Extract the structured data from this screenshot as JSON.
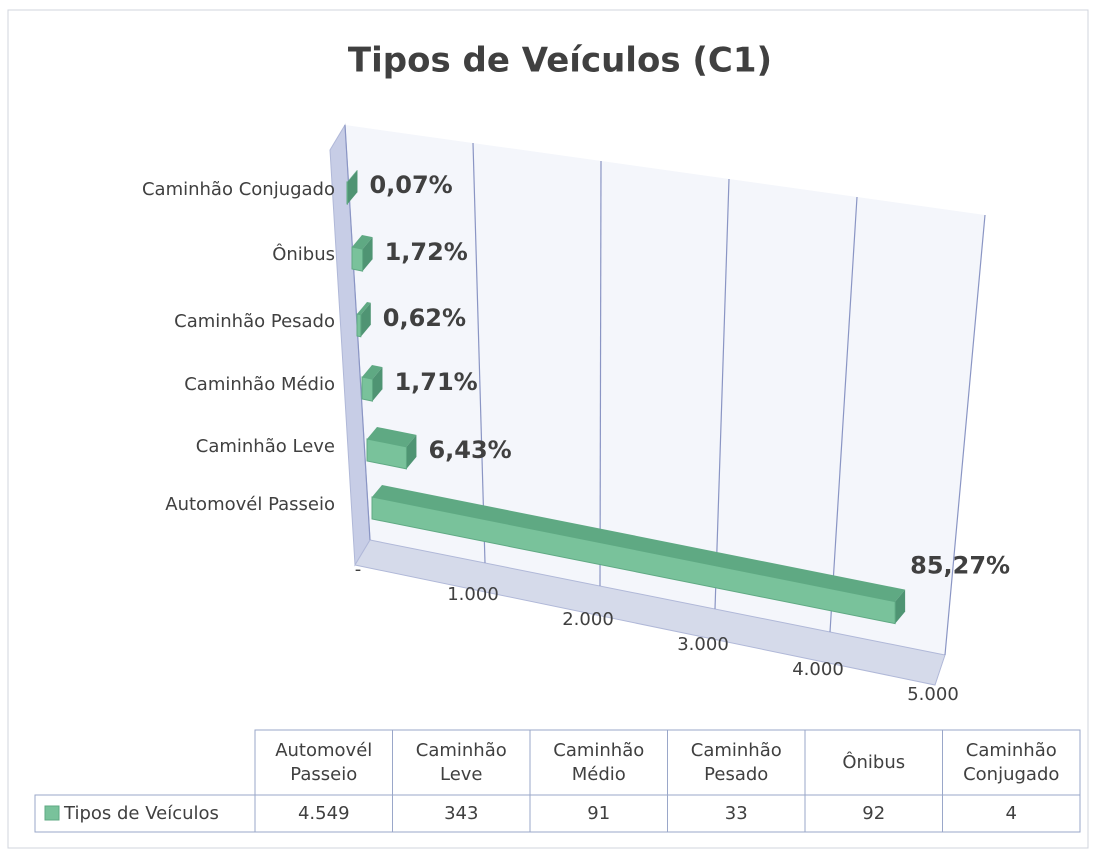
{
  "chart_data": {
    "type": "bar3d_horizontal",
    "title": "Tipos de Veículos (C1)",
    "categories": [
      "Automovél Passeio",
      "Caminhão Leve",
      "Caminhão Médio",
      "Caminhão Pesado",
      "Ônibus",
      "Caminhão Conjugado"
    ],
    "series": [
      {
        "name": "Tipos de Veículos",
        "color": "#79c29b",
        "values": [
          4549,
          343,
          91,
          33,
          92,
          4
        ],
        "value_labels": [
          "4.549",
          "343",
          "91",
          "33",
          "92",
          "4"
        ],
        "percent_values": [
          85.27,
          6.43,
          1.71,
          0.62,
          1.72,
          0.07
        ],
        "percent_labels": [
          "85,27%",
          "6,43%",
          "1,71%",
          "0,62%",
          "1,72%",
          "0,07%"
        ]
      }
    ],
    "xlim": [
      0,
      5000
    ],
    "xticks": [
      {
        "value": 0,
        "label": "-"
      },
      {
        "value": 1000,
        "label": "1.000"
      },
      {
        "value": 2000,
        "label": "2.000"
      },
      {
        "value": 3000,
        "label": "3.000"
      },
      {
        "value": 4000,
        "label": "4.000"
      },
      {
        "value": 5000,
        "label": "5.000"
      }
    ],
    "grid": true,
    "data_table": true
  }
}
